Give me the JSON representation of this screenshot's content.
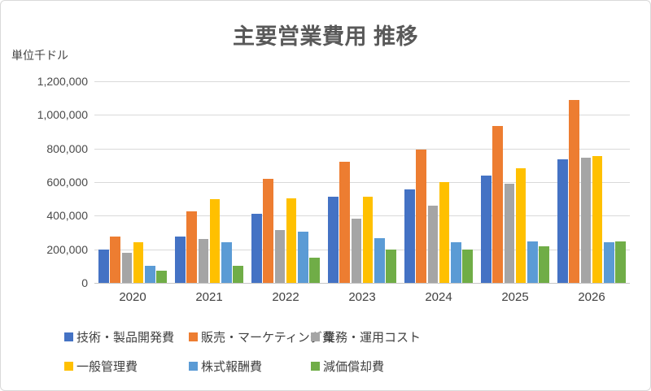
{
  "chart_data": {
    "type": "bar",
    "title": "主要営業費用 推移",
    "unit_label": "単位千ドル",
    "categories": [
      "2020",
      "2021",
      "2022",
      "2023",
      "2024",
      "2025",
      "2026"
    ],
    "series": [
      {
        "name": "技術・製品開発費",
        "color": "#4472C4",
        "values": [
          200000,
          275000,
          410000,
          515000,
          555000,
          640000,
          735000
        ]
      },
      {
        "name": "販売・マーケティング費",
        "color": "#ED7D31",
        "values": [
          275000,
          425000,
          620000,
          720000,
          795000,
          935000,
          1090000
        ]
      },
      {
        "name": "業務・運用コスト",
        "color": "#A5A5A5",
        "values": [
          180000,
          260000,
          315000,
          380000,
          460000,
          590000,
          745000
        ]
      },
      {
        "name": "一般管理費",
        "color": "#FFC000",
        "values": [
          240000,
          500000,
          505000,
          515000,
          600000,
          680000,
          755000
        ]
      },
      {
        "name": "株式報酬費",
        "color": "#5B9BD5",
        "values": [
          100000,
          240000,
          305000,
          265000,
          240000,
          245000,
          240000
        ]
      },
      {
        "name": "減価償却費",
        "color": "#70AD47",
        "values": [
          75000,
          100000,
          150000,
          200000,
          200000,
          220000,
          245000
        ]
      }
    ],
    "ylim": [
      0,
      1200000
    ],
    "ytick_step": 200000,
    "ytick_labels": [
      "0",
      "200,000",
      "400,000",
      "600,000",
      "800,000",
      "1,000,000",
      "1,200,000"
    ],
    "grid": true,
    "legend_position": "bottom",
    "colors": {
      "background": "#FFFFFF",
      "border": "#D9D9D9",
      "gridline": "#D9D9D9",
      "axis_line": "#C6C6C6",
      "title_text": "#595959",
      "label_text": "#404040"
    }
  }
}
